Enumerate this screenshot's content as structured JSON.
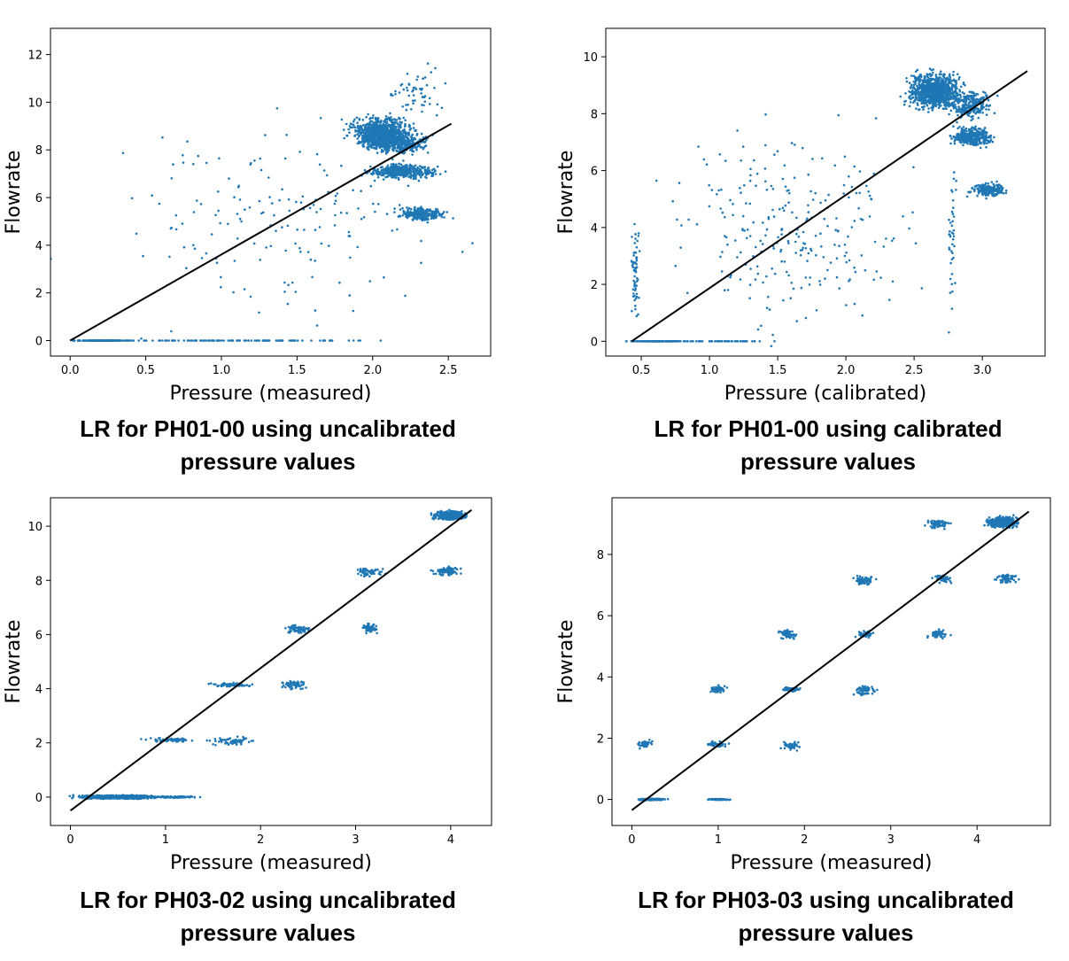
{
  "chart_data": [
    {
      "type": "scatter",
      "xlabel": "Pressure (measured)",
      "ylabel": "Flowrate",
      "caption": [
        "LR for PH01-00 using uncalibrated",
        "pressure values"
      ],
      "xlim": [
        -0.13,
        2.78
      ],
      "ylim": [
        -0.65,
        13.1
      ],
      "xticks": [
        0.0,
        0.5,
        1.0,
        1.5,
        2.0,
        2.5
      ],
      "xtick_labels": [
        "0.0",
        "0.5",
        "1.0",
        "1.5",
        "2.0",
        "2.5"
      ],
      "yticks": [
        0,
        2,
        4,
        6,
        8,
        10,
        12
      ],
      "ytick_labels": [
        "0",
        "2",
        "4",
        "6",
        "8",
        "10",
        "12"
      ],
      "point_color": "#1f77b4",
      "line_color": "#000000",
      "regression_line": [
        [
          0.0,
          0.0
        ],
        [
          2.52,
          9.1
        ]
      ],
      "clusters": [
        {
          "cx": 2.05,
          "cy": 8.7,
          "sx": 0.12,
          "sy": 0.45,
          "n": 900
        },
        {
          "cx": 2.2,
          "cy": 8.3,
          "sx": 0.1,
          "sy": 0.3,
          "n": 300
        },
        {
          "cx": 2.2,
          "cy": 7.1,
          "sx": 0.14,
          "sy": 0.2,
          "n": 420
        },
        {
          "cx": 2.32,
          "cy": 5.3,
          "sx": 0.1,
          "sy": 0.18,
          "n": 260
        },
        {
          "cx": 0.2,
          "cy": 0.0,
          "sx": 0.13,
          "sy": 0.0,
          "n": 160
        },
        {
          "cx": 1.05,
          "cy": 0.0,
          "sx": 0.55,
          "sy": 0.0,
          "n": 110
        },
        {
          "cx": 1.4,
          "cy": 5.0,
          "sx": 0.7,
          "sy": 2.8,
          "n": 170
        },
        {
          "cx": 2.3,
          "cy": 10.4,
          "sx": 0.1,
          "sy": 0.8,
          "n": 60
        }
      ]
    },
    {
      "type": "scatter",
      "xlabel": "Pressure (calibrated)",
      "ylabel": "Flowrate",
      "caption": [
        "LR for PH01-00 using  calibrated",
        "pressure values"
      ],
      "xlim": [
        0.24,
        3.46
      ],
      "ylim": [
        -0.52,
        11.0
      ],
      "xticks": [
        0.5,
        1.0,
        1.5,
        2.0,
        2.5,
        3.0
      ],
      "xtick_labels": [
        "0.5",
        "1.0",
        "1.5",
        "2.0",
        "2.5",
        "3.0"
      ],
      "yticks": [
        0,
        2,
        4,
        6,
        8,
        10
      ],
      "ytick_labels": [
        "0",
        "2",
        "4",
        "6",
        "8",
        "10"
      ],
      "point_color": "#1f77b4",
      "line_color": "#000000",
      "regression_line": [
        [
          0.43,
          0.0
        ],
        [
          3.33,
          9.5
        ]
      ],
      "clusters": [
        {
          "cx": 2.65,
          "cy": 8.8,
          "sx": 0.12,
          "sy": 0.4,
          "n": 900
        },
        {
          "cx": 2.9,
          "cy": 8.3,
          "sx": 0.1,
          "sy": 0.3,
          "n": 250
        },
        {
          "cx": 2.92,
          "cy": 7.2,
          "sx": 0.09,
          "sy": 0.2,
          "n": 380
        },
        {
          "cx": 3.05,
          "cy": 5.3,
          "sx": 0.08,
          "sy": 0.15,
          "n": 200
        },
        {
          "cx": 0.62,
          "cy": 0.0,
          "sx": 0.12,
          "sy": 0.0,
          "n": 160
        },
        {
          "cx": 1.1,
          "cy": 0.0,
          "sx": 0.25,
          "sy": 0.0,
          "n": 50
        },
        {
          "cx": 1.6,
          "cy": 3.8,
          "sx": 0.6,
          "sy": 2.2,
          "n": 260
        },
        {
          "cx": 0.46,
          "cy": 2.5,
          "sx": 0.02,
          "sy": 1.4,
          "n": 60
        },
        {
          "cx": 2.78,
          "cy": 3.5,
          "sx": 0.02,
          "sy": 1.8,
          "n": 40
        }
      ]
    },
    {
      "type": "scatter",
      "xlabel": "Pressure (measured)",
      "ylabel": "Flowrate",
      "caption": [
        "LR for PH03-02 using uncalibrated",
        "pressure values"
      ],
      "xlim": [
        -0.21,
        4.43
      ],
      "ylim": [
        -1.05,
        11.05
      ],
      "xticks": [
        0,
        1,
        2,
        3,
        4
      ],
      "xtick_labels": [
        "0",
        "1",
        "2",
        "3",
        "4"
      ],
      "yticks": [
        0,
        2,
        4,
        6,
        8,
        10
      ],
      "ytick_labels": [
        "0",
        "2",
        "4",
        "6",
        "8",
        "10"
      ],
      "point_color": "#1f77b4",
      "line_color": "#000000",
      "regression_line": [
        [
          0.0,
          -0.5
        ],
        [
          4.22,
          10.6
        ]
      ],
      "clusters": [
        {
          "cx": 0.5,
          "cy": 0.0,
          "sx": 0.25,
          "sy": 0.04,
          "n": 900
        },
        {
          "cx": 1.1,
          "cy": 0.0,
          "sx": 0.15,
          "sy": 0.02,
          "n": 80
        },
        {
          "cx": 4.0,
          "cy": 10.4,
          "sx": 0.1,
          "sy": 0.1,
          "n": 500
        },
        {
          "cx": 3.15,
          "cy": 8.3,
          "sx": 0.1,
          "sy": 0.1,
          "n": 60
        },
        {
          "cx": 3.95,
          "cy": 8.35,
          "sx": 0.1,
          "sy": 0.12,
          "n": 80
        },
        {
          "cx": 2.4,
          "cy": 6.2,
          "sx": 0.08,
          "sy": 0.1,
          "n": 70
        },
        {
          "cx": 3.15,
          "cy": 6.25,
          "sx": 0.05,
          "sy": 0.12,
          "n": 60
        },
        {
          "cx": 1.7,
          "cy": 4.15,
          "sx": 0.12,
          "sy": 0.06,
          "n": 70
        },
        {
          "cx": 2.35,
          "cy": 4.15,
          "sx": 0.1,
          "sy": 0.1,
          "n": 60
        },
        {
          "cx": 1.05,
          "cy": 2.1,
          "sx": 0.15,
          "sy": 0.05,
          "n": 60
        },
        {
          "cx": 1.7,
          "cy": 2.05,
          "sx": 0.15,
          "sy": 0.1,
          "n": 60
        }
      ]
    },
    {
      "type": "scatter",
      "xlabel": "Pressure (measured)",
      "ylabel": "Flowrate",
      "caption": [
        "LR for PH03-03 using uncalibrated",
        "pressure values"
      ],
      "xlim": [
        -0.23,
        4.85
      ],
      "ylim": [
        -0.85,
        9.85
      ],
      "xticks": [
        0,
        1,
        2,
        3,
        4
      ],
      "xtick_labels": [
        "0",
        "1",
        "2",
        "3",
        "4"
      ],
      "yticks": [
        0,
        2,
        4,
        6,
        8
      ],
      "ytick_labels": [
        "0",
        "2",
        "4",
        "6",
        "8"
      ],
      "point_color": "#1f77b4",
      "line_color": "#000000",
      "regression_line": [
        [
          0.0,
          -0.35
        ],
        [
          4.6,
          9.4
        ]
      ],
      "clusters": [
        {
          "cx": 4.3,
          "cy": 9.05,
          "sx": 0.1,
          "sy": 0.1,
          "n": 500
        },
        {
          "cx": 3.55,
          "cy": 9.0,
          "sx": 0.08,
          "sy": 0.1,
          "n": 60
        },
        {
          "cx": 3.6,
          "cy": 7.2,
          "sx": 0.07,
          "sy": 0.08,
          "n": 40
        },
        {
          "cx": 4.35,
          "cy": 7.2,
          "sx": 0.08,
          "sy": 0.1,
          "n": 60
        },
        {
          "cx": 2.7,
          "cy": 7.15,
          "sx": 0.08,
          "sy": 0.1,
          "n": 60
        },
        {
          "cx": 1.8,
          "cy": 5.4,
          "sx": 0.07,
          "sy": 0.1,
          "n": 60
        },
        {
          "cx": 2.7,
          "cy": 5.4,
          "sx": 0.06,
          "sy": 0.08,
          "n": 50
        },
        {
          "cx": 3.55,
          "cy": 5.4,
          "sx": 0.07,
          "sy": 0.1,
          "n": 50
        },
        {
          "cx": 1.0,
          "cy": 3.6,
          "sx": 0.06,
          "sy": 0.08,
          "n": 50
        },
        {
          "cx": 1.85,
          "cy": 3.6,
          "sx": 0.07,
          "sy": 0.06,
          "n": 50
        },
        {
          "cx": 2.7,
          "cy": 3.55,
          "sx": 0.08,
          "sy": 0.12,
          "n": 60
        },
        {
          "cx": 0.15,
          "cy": 1.8,
          "sx": 0.05,
          "sy": 0.08,
          "n": 50
        },
        {
          "cx": 1.0,
          "cy": 1.8,
          "sx": 0.07,
          "sy": 0.05,
          "n": 50
        },
        {
          "cx": 1.85,
          "cy": 1.75,
          "sx": 0.07,
          "sy": 0.1,
          "n": 50
        },
        {
          "cx": 0.22,
          "cy": 0.0,
          "sx": 0.1,
          "sy": 0.02,
          "n": 120
        },
        {
          "cx": 1.0,
          "cy": 0.0,
          "sx": 0.08,
          "sy": 0.01,
          "n": 80
        }
      ]
    }
  ]
}
